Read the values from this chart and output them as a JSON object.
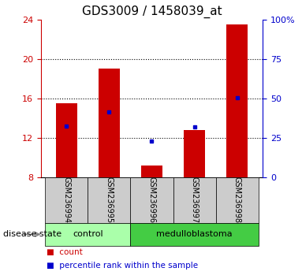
{
  "title": "GDS3009 / 1458039_at",
  "samples": [
    "GSM236994",
    "GSM236995",
    "GSM236996",
    "GSM236997",
    "GSM236998"
  ],
  "red_values": [
    15.5,
    19.0,
    9.2,
    12.8,
    23.5
  ],
  "blue_values": [
    13.2,
    14.6,
    11.7,
    13.1,
    16.1
  ],
  "baseline": 8,
  "ylim_left": [
    8,
    24
  ],
  "ylim_right": [
    0,
    100
  ],
  "yticks_left": [
    8,
    12,
    16,
    20,
    24
  ],
  "yticks_right": [
    0,
    25,
    50,
    75,
    100
  ],
  "ytick_labels_right": [
    "0",
    "25",
    "50",
    "75",
    "100%"
  ],
  "groups": [
    {
      "label": "control",
      "indices": [
        0,
        1
      ],
      "color": "#aaffaa"
    },
    {
      "label": "medulloblastoma",
      "indices": [
        2,
        3,
        4
      ],
      "color": "#44cc44"
    }
  ],
  "disease_state_label": "disease state",
  "legend_items": [
    {
      "label": "count",
      "color": "#CC0000"
    },
    {
      "label": "percentile rank within the sample",
      "color": "#0000CC"
    }
  ],
  "bar_color": "#CC0000",
  "dot_color": "#0000CC",
  "axis_color_left": "#CC0000",
  "axis_color_right": "#0000CC",
  "bg_color": "#FFFFFF",
  "sample_box_color": "#CCCCCC",
  "title_fontsize": 11,
  "tick_fontsize": 8,
  "sample_label_fontsize": 7,
  "disease_fontsize": 8,
  "legend_fontsize": 7.5
}
